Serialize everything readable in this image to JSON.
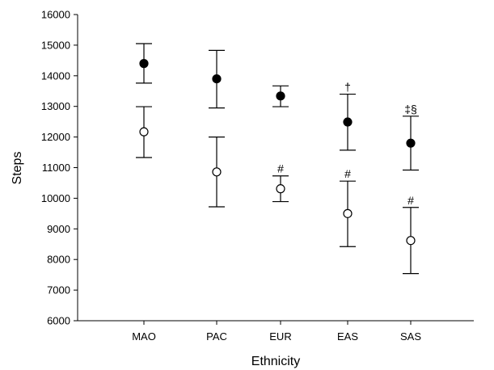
{
  "chart_data": {
    "type": "scatter",
    "title": "",
    "xlabel": "Ethnicity",
    "ylabel": "Steps",
    "ylim": [
      6000,
      16000
    ],
    "yticks": [
      6000,
      7000,
      8000,
      9000,
      10000,
      11000,
      12000,
      13000,
      14000,
      15000,
      16000
    ],
    "categories": [
      "MAO",
      "PAC",
      "EUR",
      "EAS",
      "SAS"
    ],
    "grid": false,
    "legend": "none",
    "series": [
      {
        "marker": "filled-circle",
        "color": "#000000",
        "values": [
          14400,
          13900,
          13340,
          12490,
          11800
        ],
        "lower": [
          13760,
          12950,
          12990,
          11570,
          10920
        ],
        "upper": [
          15050,
          14830,
          13670,
          13400,
          12680
        ]
      },
      {
        "marker": "open-circle",
        "color": "#000000",
        "values": [
          12170,
          10860,
          10310,
          9500,
          8620
        ],
        "lower": [
          11330,
          9720,
          9890,
          8420,
          7540
        ],
        "upper": [
          12990,
          12000,
          10730,
          10560,
          9700
        ]
      }
    ],
    "annotations": [
      {
        "category": "EUR",
        "y": 10730,
        "text": "#"
      },
      {
        "category": "EAS",
        "y": 10560,
        "text": "#"
      },
      {
        "category": "SAS",
        "y": 9700,
        "text": "#"
      },
      {
        "category": "EAS",
        "y": 13400,
        "text": "†"
      },
      {
        "category": "SAS",
        "y": 12680,
        "text": "‡§"
      }
    ]
  }
}
